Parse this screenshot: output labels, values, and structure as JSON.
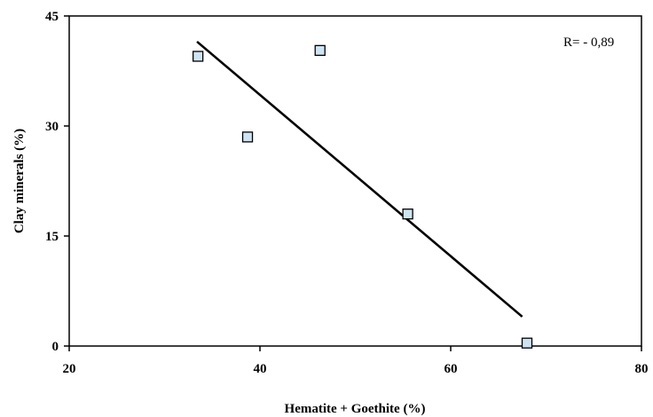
{
  "chart_data": {
    "type": "scatter",
    "title": "",
    "xlabel": "Hematite + Goethite (%)",
    "ylabel": "Clay minerals (%)",
    "xlim": [
      20,
      80
    ],
    "ylim": [
      0,
      45
    ],
    "x_ticks": [
      "20",
      "40",
      "60",
      "80"
    ],
    "y_ticks": [
      "0",
      "15",
      "30",
      "45"
    ],
    "grid": false,
    "legend": "none",
    "series": [
      {
        "points": [
          {
            "x": 33.5,
            "y": 39.5
          },
          {
            "x": 38.7,
            "y": 28.5
          },
          {
            "x": 46.3,
            "y": 40.3
          },
          {
            "x": 55.5,
            "y": 18.0
          },
          {
            "x": 68.0,
            "y": 0.4
          }
        ],
        "marker": "square",
        "fill": "#cfe4f2",
        "stroke": "#000000"
      }
    ],
    "trendline": {
      "x_start": 33.4,
      "y_start": 41.5,
      "x_end": 67.5,
      "y_end": 4.0
    },
    "annotation": "R= - 0,89"
  }
}
